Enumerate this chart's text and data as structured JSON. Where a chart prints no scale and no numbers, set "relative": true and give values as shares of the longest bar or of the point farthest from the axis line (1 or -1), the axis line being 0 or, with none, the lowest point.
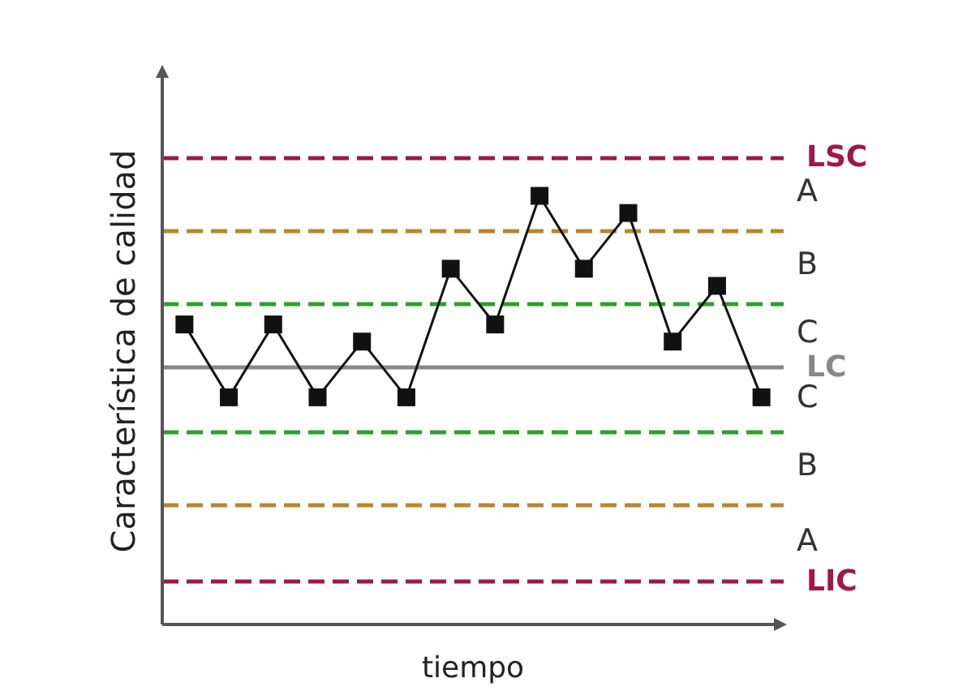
{
  "chart_data": {
    "type": "line",
    "relative": true,
    "xlabel": "tiempo",
    "ylabel": "Característica de calidad",
    "categories": [
      null,
      null,
      null,
      null,
      null,
      null,
      null,
      null,
      null,
      null,
      null,
      null,
      null,
      null
    ],
    "series": [
      {
        "color": "#111111",
        "values": [
          0.7,
          0.53,
          0.7,
          0.53,
          0.66,
          0.53,
          0.83,
          0.7,
          1,
          0.83,
          0.96,
          0.66,
          0.79,
          0.53
        ]
      }
    ],
    "marker": "square",
    "line_style": "solid",
    "grid": false,
    "ref_lines": [
      {
        "axis": "y",
        "value": 1.09,
        "label": "LSC",
        "color": "#a0174a",
        "line_style": "dashed"
      },
      {
        "axis": "y",
        "value": 0.92,
        "color": "#b8862b",
        "line_style": "dashed"
      },
      {
        "axis": "y",
        "value": 0.75,
        "color": "#2e9e2e",
        "line_style": "dashed"
      },
      {
        "axis": "y",
        "value": 0.6,
        "label": "LC",
        "color": "#888888",
        "line_style": "solid"
      },
      {
        "axis": "y",
        "value": 0.45,
        "color": "#2e9e2e",
        "line_style": "dashed"
      },
      {
        "axis": "y",
        "value": 0.28,
        "color": "#b8862b",
        "line_style": "dashed"
      },
      {
        "axis": "y",
        "value": 0.1,
        "label": "LIC",
        "color": "#a0174a",
        "line_style": "dashed"
      }
    ],
    "annotations": [
      "A",
      "B",
      "C",
      "C",
      "B",
      "A"
    ]
  }
}
